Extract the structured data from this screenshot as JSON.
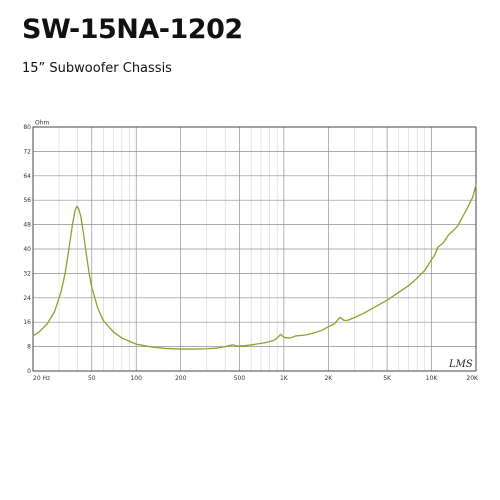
{
  "header": {
    "title": "SW-15NA-1202",
    "subtitle": "15” Subwoofer Chassis"
  },
  "chart_data": {
    "type": "line",
    "unit_label": "Ohm",
    "x_scale": "log",
    "xlim": [
      20,
      20000
    ],
    "ylim": [
      0,
      80
    ],
    "grid": true,
    "y_ticks": [
      0,
      8,
      16,
      24,
      32,
      40,
      48,
      56,
      64,
      72,
      80
    ],
    "x_tick_labels": [
      {
        "value": 20,
        "label": "20 Hz"
      },
      {
        "value": 50,
        "label": "50"
      },
      {
        "value": 100,
        "label": "100"
      },
      {
        "value": 200,
        "label": "200"
      },
      {
        "value": 500,
        "label": "500"
      },
      {
        "value": 1000,
        "label": "1K"
      },
      {
        "value": 2000,
        "label": "2K"
      },
      {
        "value": 5000,
        "label": "5K"
      },
      {
        "value": 10000,
        "label": "10K"
      },
      {
        "value": 20000,
        "label": "20K"
      }
    ],
    "watermark": "LMS",
    "line_color": "#8aa32a",
    "series": [
      {
        "points": [
          [
            20,
            11.5
          ],
          [
            22,
            12.8
          ],
          [
            25,
            15.5
          ],
          [
            28,
            19.5
          ],
          [
            31,
            26
          ],
          [
            33,
            32
          ],
          [
            35,
            40
          ],
          [
            37,
            48
          ],
          [
            38.5,
            52.5
          ],
          [
            39.5,
            54
          ],
          [
            40.5,
            53.5
          ],
          [
            42,
            51
          ],
          [
            44,
            45
          ],
          [
            46,
            38
          ],
          [
            48,
            32
          ],
          [
            50,
            27.5
          ],
          [
            55,
            20.5
          ],
          [
            60,
            16.5
          ],
          [
            70,
            12.8
          ],
          [
            80,
            10.8
          ],
          [
            100,
            8.8
          ],
          [
            130,
            7.8
          ],
          [
            160,
            7.4
          ],
          [
            200,
            7.2
          ],
          [
            250,
            7.2
          ],
          [
            300,
            7.3
          ],
          [
            350,
            7.5
          ],
          [
            400,
            8.0
          ],
          [
            450,
            8.6
          ],
          [
            480,
            8.2
          ],
          [
            550,
            8.3
          ],
          [
            650,
            8.8
          ],
          [
            750,
            9.3
          ],
          [
            850,
            10.0
          ],
          [
            900,
            10.8
          ],
          [
            950,
            12.0
          ],
          [
            1000,
            11.0
          ],
          [
            1100,
            10.8
          ],
          [
            1200,
            11.5
          ],
          [
            1400,
            11.8
          ],
          [
            1600,
            12.5
          ],
          [
            1800,
            13.3
          ],
          [
            2000,
            14.5
          ],
          [
            2200,
            15.5
          ],
          [
            2400,
            17.6
          ],
          [
            2550,
            16.6
          ],
          [
            2700,
            16.6
          ],
          [
            3000,
            17.5
          ],
          [
            3500,
            19.0
          ],
          [
            4000,
            20.6
          ],
          [
            5000,
            23.2
          ],
          [
            6000,
            25.8
          ],
          [
            7000,
            28.0
          ],
          [
            8000,
            30.5
          ],
          [
            9000,
            33.0
          ],
          [
            10000,
            36.5
          ],
          [
            10500,
            38.0
          ],
          [
            11000,
            40.5
          ],
          [
            12000,
            42.0
          ],
          [
            13000,
            44.5
          ],
          [
            14000,
            46.0
          ],
          [
            15000,
            47.5
          ],
          [
            16000,
            50.0
          ],
          [
            17500,
            53.5
          ],
          [
            19000,
            57.0
          ],
          [
            20000,
            61.0
          ]
        ]
      }
    ]
  }
}
